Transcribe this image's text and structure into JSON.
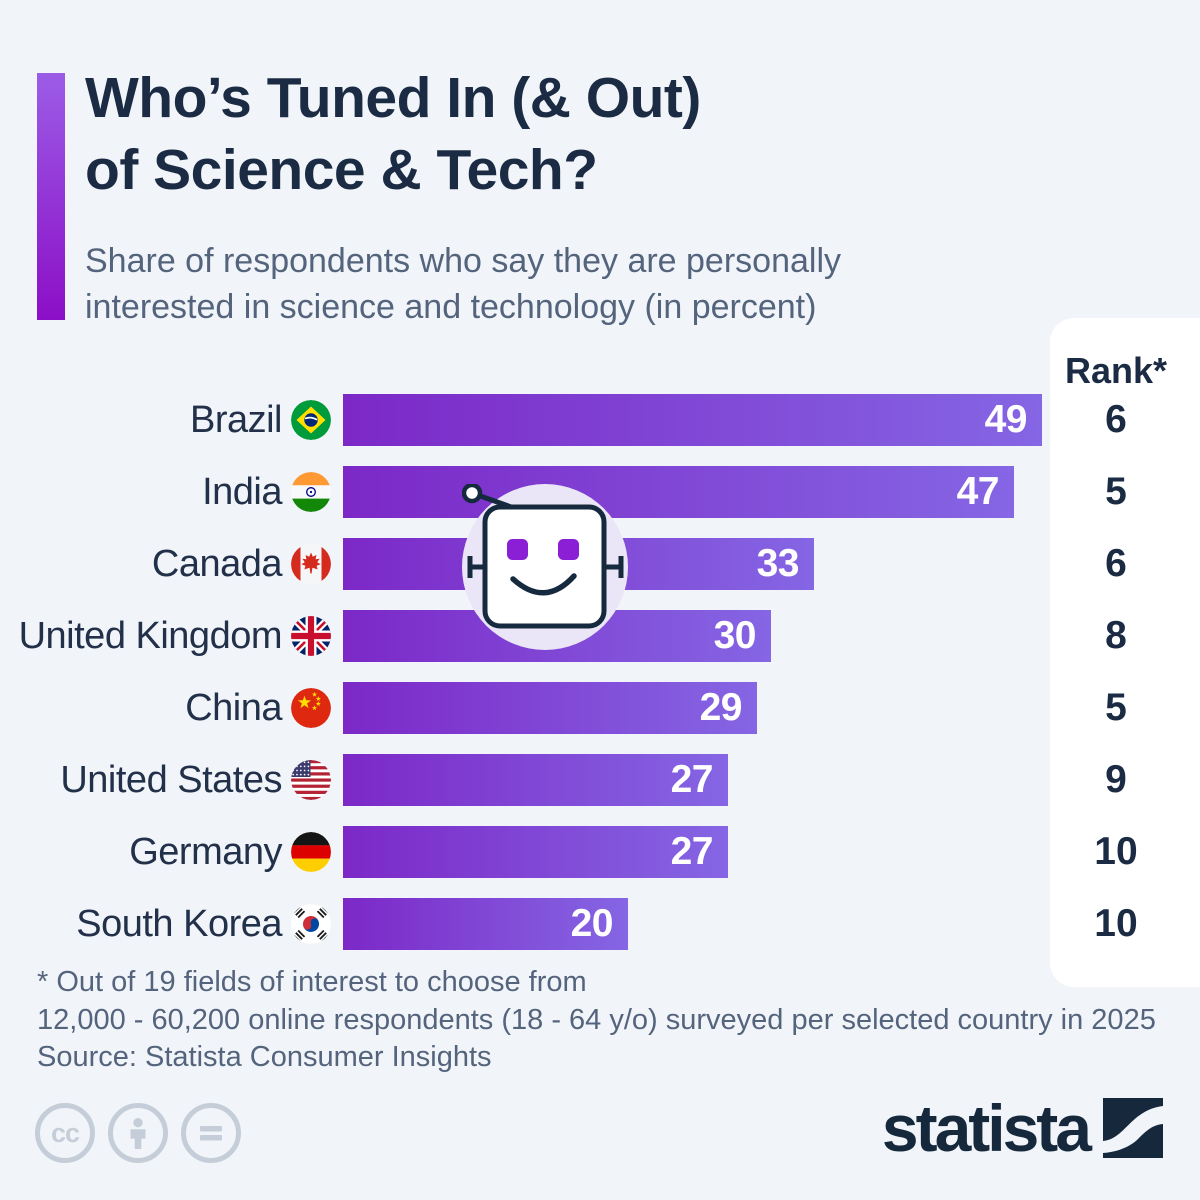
{
  "page": {
    "background": "#f1f5f9"
  },
  "header": {
    "title_line1": "Who’s Tuned In (& Out)",
    "title_line2": "of Science & Tech?",
    "subtitle_line1": "Share of respondents who say they are personally",
    "subtitle_line2": "interested in science and technology (in percent)",
    "accent_gradient": [
      "#9b5ce6",
      "#8c0fc7"
    ]
  },
  "chart_data": {
    "type": "bar",
    "orientation": "horizontal",
    "unit": "percent",
    "xlim": [
      0,
      50
    ],
    "grid": false,
    "rank_header": "Rank*",
    "categories": [
      "Brazil",
      "India",
      "Canada",
      "United Kingdom",
      "China",
      "United States",
      "Germany",
      "South Korea"
    ],
    "values": [
      49,
      47,
      33,
      30,
      29,
      27,
      27,
      20
    ],
    "ranks": [
      6,
      5,
      6,
      8,
      5,
      9,
      10,
      10
    ],
    "bar_gradient": [
      "#7c28c7",
      "#8566e4"
    ],
    "value_label_color": "#ffffff",
    "rows": [
      {
        "country": "Brazil",
        "flag": "brazil",
        "value": 49,
        "rank": 6
      },
      {
        "country": "India",
        "flag": "india",
        "value": 47,
        "rank": 5
      },
      {
        "country": "Canada",
        "flag": "canada",
        "value": 33,
        "rank": 6
      },
      {
        "country": "United Kingdom",
        "flag": "uk",
        "value": 30,
        "rank": 8
      },
      {
        "country": "China",
        "flag": "china",
        "value": 29,
        "rank": 5
      },
      {
        "country": "United States",
        "flag": "usa",
        "value": 27,
        "rank": 9
      },
      {
        "country": "Germany",
        "flag": "germany",
        "value": 27,
        "rank": 10
      },
      {
        "country": "South Korea",
        "flag": "south-korea",
        "value": 20,
        "rank": 10
      }
    ]
  },
  "footer": {
    "footnote_line1": "* Out of 19 fields of interest to choose from",
    "footnote_line2": "12,000 - 60,200 online respondents (18 - 64 y/o) surveyed per selected country in 2025",
    "source": "Source: Statista Consumer Insights"
  },
  "branding": {
    "logo_text": "statista",
    "logo_color": "#16283c",
    "license_icons": [
      "cc",
      "attribution",
      "no-derivatives"
    ]
  }
}
